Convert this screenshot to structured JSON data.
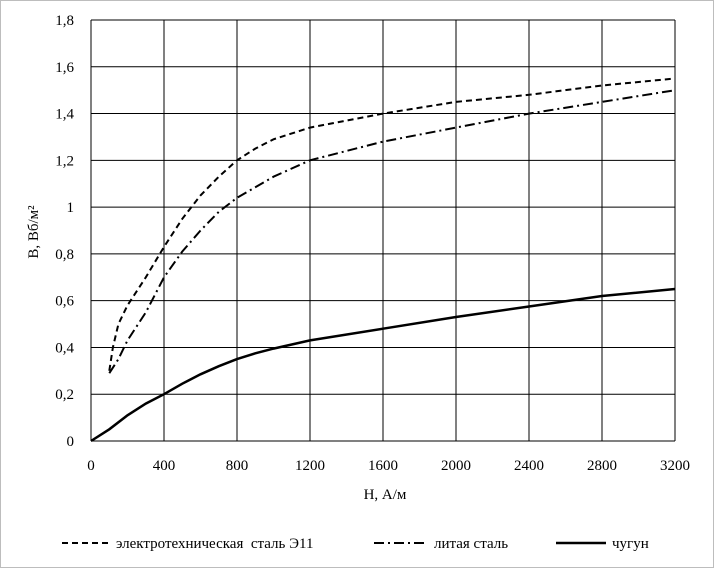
{
  "chart_data": {
    "type": "line",
    "xlabel": "H, А/м",
    "ylabel": "B, Вб/м²",
    "xlim": [
      0,
      3200
    ],
    "ylim": [
      0,
      1.8
    ],
    "x_ticks": [
      "0",
      "400",
      "800",
      "1200",
      "1600",
      "2000",
      "2400",
      "2800",
      "3200"
    ],
    "y_ticks": [
      "0",
      "0,2",
      "0,4",
      "0,6",
      "0,8",
      "1",
      "1,2",
      "1,4",
      "1,6",
      "1,8"
    ],
    "grid": true,
    "legend_position": "bottom",
    "series": [
      {
        "name": "электротехническая  сталь Э11",
        "style": "dashed",
        "x": [
          100,
          120,
          150,
          200,
          300,
          400,
          500,
          600,
          700,
          800,
          900,
          1000,
          1200,
          1400,
          1600,
          2000,
          2400,
          2800,
          3200
        ],
        "y": [
          0.3,
          0.4,
          0.5,
          0.58,
          0.7,
          0.83,
          0.95,
          1.05,
          1.13,
          1.2,
          1.25,
          1.29,
          1.34,
          1.37,
          1.4,
          1.45,
          1.48,
          1.52,
          1.55
        ]
      },
      {
        "name": "литая сталь",
        "style": "dash-dot",
        "x": [
          100,
          150,
          200,
          300,
          400,
          500,
          600,
          700,
          800,
          1000,
          1200,
          1600,
          2000,
          2400,
          2800,
          3200
        ],
        "y": [
          0.29,
          0.35,
          0.43,
          0.55,
          0.7,
          0.81,
          0.9,
          0.98,
          1.04,
          1.13,
          1.2,
          1.28,
          1.34,
          1.4,
          1.45,
          1.5
        ]
      },
      {
        "name": "чугун",
        "style": "solid",
        "x": [
          0,
          100,
          200,
          300,
          400,
          500,
          600,
          700,
          800,
          900,
          1000,
          1200,
          1600,
          2000,
          2400,
          2800,
          3200
        ],
        "y": [
          0,
          0.05,
          0.11,
          0.16,
          0.2,
          0.245,
          0.285,
          0.32,
          0.35,
          0.375,
          0.395,
          0.43,
          0.48,
          0.53,
          0.575,
          0.62,
          0.65
        ]
      }
    ]
  }
}
